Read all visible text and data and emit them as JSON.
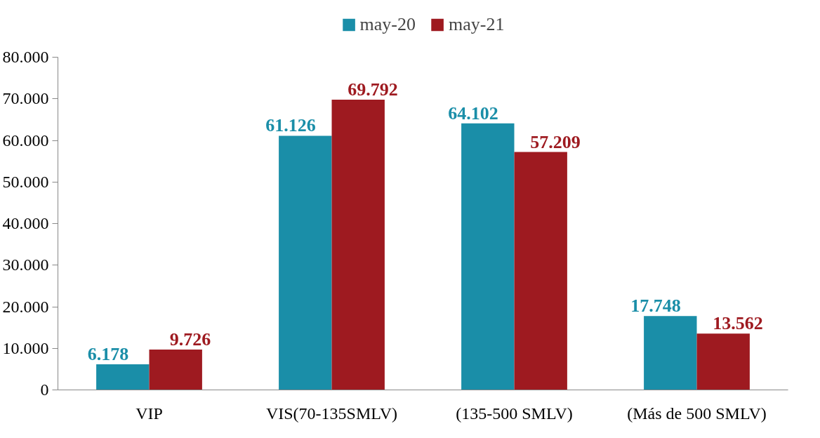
{
  "chart_data": {
    "type": "bar",
    "categories": [
      "VIP",
      "VIS(70-135SMLV)",
      "(135-500 SMLV)",
      "(Más de 500 SMLV)"
    ],
    "series": [
      {
        "name": "may-20",
        "color": "#1a8ea8",
        "values": [
          6178,
          61126,
          64102,
          17748
        ],
        "value_labels": [
          "6.178",
          "61.126",
          "64.102",
          "17.748"
        ]
      },
      {
        "name": "may-21",
        "color": "#9e1a20",
        "values": [
          9726,
          69792,
          57209,
          13562
        ],
        "value_labels": [
          "9.726",
          "69.792",
          "57.209",
          "13.562"
        ]
      }
    ],
    "ylim": [
      0,
      80000
    ],
    "yticks": [
      0,
      {
        "value": 10000,
        "label": "10.000"
      },
      {
        "value": 20000,
        "label": "20.000"
      },
      {
        "value": 30000,
        "label": "30.000"
      },
      {
        "value": 40000,
        "label": "40.000"
      },
      {
        "value": 50000,
        "label": "50.000"
      },
      {
        "value": 60000,
        "label": "60.000"
      },
      {
        "value": 70000,
        "label": "70.000"
      },
      {
        "value": 80000,
        "label": "80.000"
      }
    ],
    "grid": false,
    "legend": "top"
  }
}
